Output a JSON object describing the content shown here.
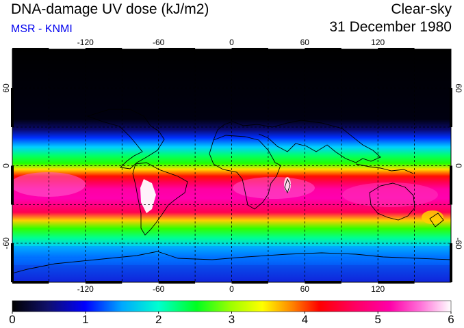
{
  "header": {
    "title": "DNA-damage UV dose (kJ/m2)",
    "subtitle": "MSR - KNMI",
    "condition": "Clear-sky",
    "date": "31 December 1980"
  },
  "map": {
    "lon_ticks": [
      "-120",
      "-60",
      "0",
      "60",
      "120"
    ],
    "lat_ticks_left": [
      "60",
      "0",
      "-60"
    ],
    "lat_ticks_right": [
      "60",
      "0",
      "-60"
    ]
  },
  "colorbar": {
    "labels": [
      "0",
      "1",
      "2",
      "3",
      "4",
      "5",
      "6"
    ],
    "min": 0,
    "max": 6
  },
  "colors": {
    "stops": [
      "#000000",
      "#1a1a8c",
      "#0000ff",
      "#00a0ff",
      "#00ffff",
      "#00ff80",
      "#00ff00",
      "#c8ff00",
      "#ffff00",
      "#ff8000",
      "#ff0000",
      "#ff0060",
      "#ff00a0",
      "#ff60d0",
      "#ffffff"
    ]
  }
}
